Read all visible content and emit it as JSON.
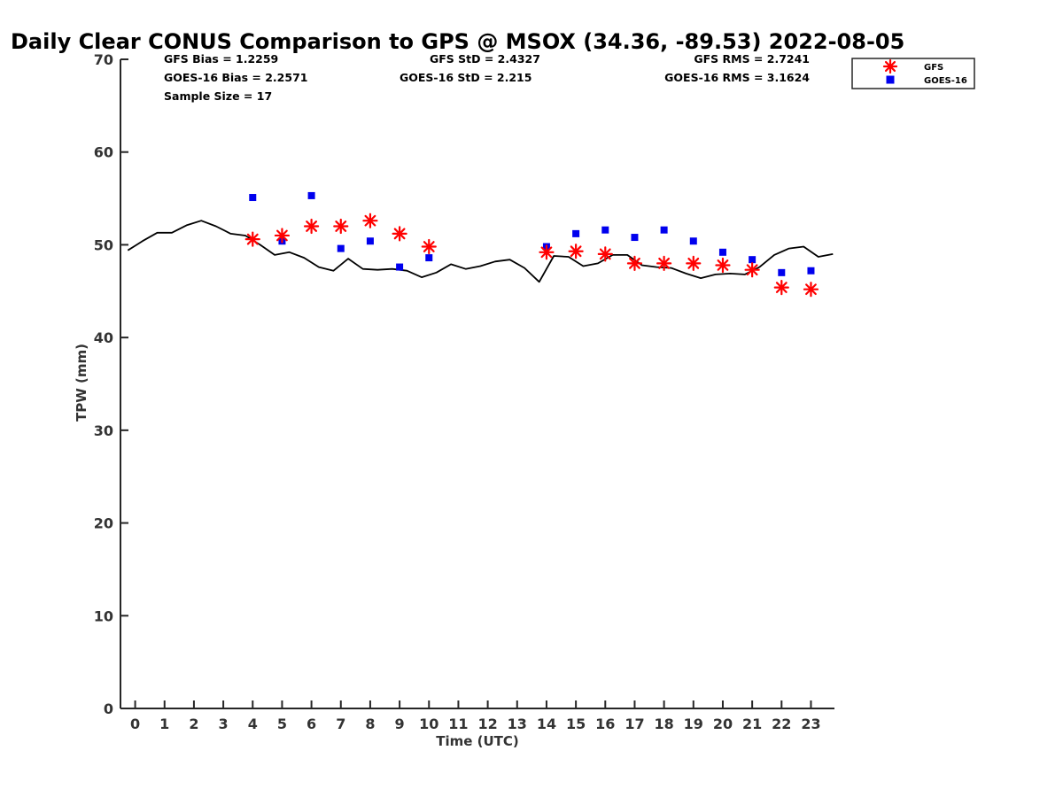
{
  "chart_data": {
    "type": "line",
    "title": "Daily Clear CONUS Comparison to GPS @ MSOX (34.36, -89.53) 2022-08-05",
    "xlabel": "Time (UTC)",
    "ylabel": "TPW (mm)",
    "xlim": [
      -0.5,
      23.8
    ],
    "ylim": [
      0,
      70
    ],
    "xticks": [
      0,
      1,
      2,
      3,
      4,
      5,
      6,
      7,
      8,
      9,
      10,
      11,
      12,
      13,
      14,
      15,
      16,
      17,
      18,
      19,
      20,
      21,
      22,
      23
    ],
    "yticks": [
      0,
      10,
      20,
      30,
      40,
      50,
      60,
      70
    ],
    "stats": {
      "gfs_bias": "GFS Bias = 1.2259",
      "goes_bias": "GOES-16 Bias = 2.2571",
      "sample_size": "Sample Size = 17",
      "gfs_std": "GFS StD = 2.4327",
      "goes_std": "GOES-16 StD = 2.215",
      "gfs_rms": "GFS RMS = 2.7241",
      "goes_rms": "GOES-16 RMS = 3.1624"
    },
    "legend": {
      "position": "outside-top-right",
      "entries": [
        "GFS",
        "GOES-16"
      ]
    },
    "colors": {
      "gps": "#000000",
      "gfs": "#ff0000",
      "goes": "#0000ee",
      "axis": "#262626"
    },
    "series": [
      {
        "name": "GPS",
        "style": "line",
        "x": [
          -0.25,
          0,
          0.25,
          0.75,
          1.25,
          1.75,
          2.25,
          2.75,
          3.25,
          3.75,
          4.25,
          4.75,
          5.25,
          5.75,
          6.25,
          6.75,
          7.25,
          7.75,
          8.25,
          8.75,
          9.25,
          9.75,
          10.25,
          10.75,
          11.25,
          11.75,
          12.25,
          12.75,
          13.25,
          13.75,
          14.25,
          14.75,
          15.25,
          15.75,
          16.25,
          16.75,
          17.25,
          17.75,
          18.25,
          18.75,
          19.25,
          19.75,
          20.25,
          20.75,
          21.25,
          21.75,
          22.25,
          22.75,
          23.25,
          23.75
        ],
        "y": [
          49.4,
          49.9,
          50.4,
          51.3,
          51.3,
          52.1,
          52.6,
          52.0,
          51.2,
          51.0,
          50.0,
          48.9,
          49.2,
          48.6,
          47.6,
          47.2,
          48.5,
          47.4,
          47.3,
          47.4,
          47.2,
          46.5,
          47.0,
          47.9,
          47.4,
          47.7,
          48.2,
          48.4,
          47.5,
          46.0,
          48.8,
          48.7,
          47.7,
          48.0,
          48.9,
          48.9,
          47.8,
          47.6,
          47.5,
          46.9,
          46.4,
          46.8,
          46.9,
          46.8,
          47.6,
          48.9,
          49.6,
          49.8,
          48.7,
          49.0
        ]
      },
      {
        "name": "GFS",
        "style": "asterisk",
        "x": [
          4,
          5,
          6,
          7,
          8,
          9,
          10,
          14,
          15,
          16,
          17,
          18,
          19,
          20,
          21,
          22,
          23
        ],
        "y": [
          50.6,
          51.0,
          52.0,
          52.0,
          52.6,
          51.2,
          49.8,
          49.2,
          49.3,
          49.0,
          48.0,
          48.0,
          48.0,
          47.8,
          47.3,
          45.4,
          45.2
        ]
      },
      {
        "name": "GOES-16",
        "style": "square",
        "x": [
          4,
          5,
          6,
          7,
          8,
          9,
          10,
          14,
          15,
          16,
          17,
          18,
          19,
          20,
          21,
          22,
          23
        ],
        "y": [
          55.1,
          50.4,
          55.3,
          49.6,
          50.4,
          47.6,
          48.6,
          49.8,
          51.2,
          51.6,
          50.8,
          51.6,
          50.4,
          49.2,
          48.4,
          47.0,
          47.2
        ]
      }
    ]
  }
}
